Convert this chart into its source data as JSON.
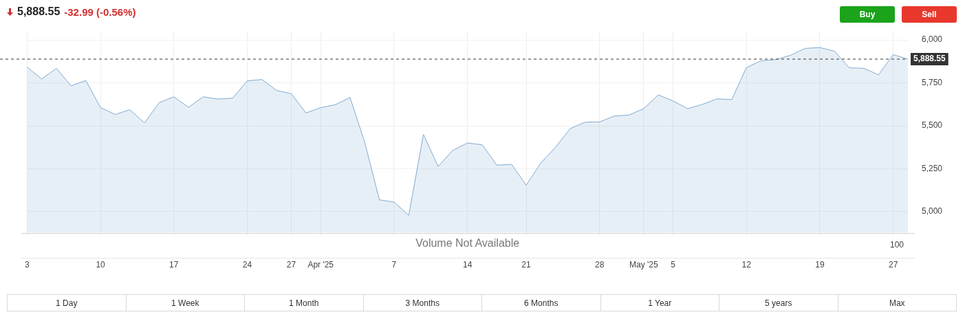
{
  "chart_data": {
    "type": "area",
    "title": "5,888.55",
    "subtitle": "-32.99 (-0.56%)",
    "categories": [
      "3",
      null,
      null,
      null,
      null,
      "10",
      null,
      null,
      null,
      null,
      "17",
      null,
      null,
      null,
      null,
      "24",
      null,
      null,
      "27",
      null,
      "Apr '25",
      null,
      null,
      null,
      null,
      "7",
      null,
      null,
      null,
      null,
      "14",
      null,
      null,
      null,
      "21",
      null,
      null,
      null,
      null,
      "28",
      null,
      null,
      "May '25",
      null,
      "5",
      null,
      null,
      null,
      null,
      "12",
      null,
      null,
      null,
      null,
      "19",
      null,
      null,
      null,
      null,
      "27",
      null
    ],
    "series": [
      {
        "color": "#7faad0",
        "values": [
          5842,
          5773,
          5835,
          5733,
          5764,
          5607,
          5566,
          5594,
          5517,
          5635,
          5669,
          5608,
          5669,
          5656,
          5661,
          5762,
          5770,
          5706,
          5687,
          5575,
          5606,
          5623,
          5665,
          5404,
          5069,
          5056,
          4979,
          5450,
          5263,
          5357,
          5400,
          5390,
          5271,
          5276,
          5154,
          5284,
          5375,
          5484,
          5521,
          5523,
          5557,
          5563,
          5600,
          5680,
          5645,
          5600,
          5625,
          5657,
          5653,
          5839,
          5879,
          5886,
          5911,
          5951,
          5956,
          5935,
          5838,
          5835,
          5797,
          5915,
          5889
        ]
      }
    ],
    "ylim": [
      4877,
      6048
    ],
    "yticks": [
      {
        "value": 5000,
        "label": "5,000"
      },
      {
        "value": 5250,
        "label": "5,250"
      },
      {
        "value": 5500,
        "label": "5,500"
      },
      {
        "value": 5750,
        "label": "5,750"
      },
      {
        "value": 6000,
        "label": "6,000"
      }
    ],
    "ref_lines": [
      {
        "axis": "y",
        "value": 5888.55,
        "label": "5,888.55",
        "color": "#333333",
        "line_style": "dashed"
      }
    ],
    "grid": true,
    "legend": false,
    "marker": "none",
    "line_style": "solid",
    "annotations": [
      "Volume Not Available",
      "100",
      "Buy",
      "Sell",
      "1 Day",
      "1 Week",
      "1 Month",
      "3 Months",
      "6 Months",
      "1 Year",
      "5 years",
      "Max"
    ]
  }
}
